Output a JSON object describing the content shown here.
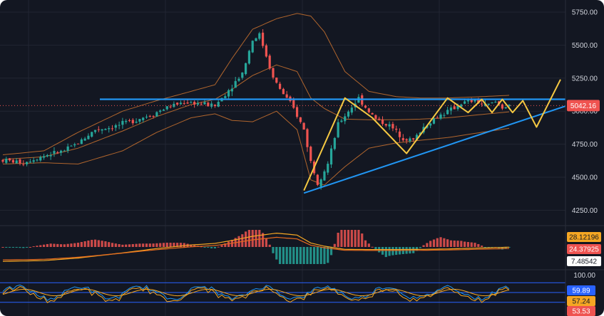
{
  "theme": {
    "background": "#131722",
    "frame": "#ffffff",
    "grid": "#222633",
    "up_color": "#26a69a",
    "down_color": "#ef5350",
    "bollinger_color": "#b0652d",
    "trendline_color": "#2196f3",
    "projection_color": "#f5c842",
    "macd_line_color": "#f5a623",
    "signal_line_color": "#e56b1f",
    "rsi_line_color": "#f5a623",
    "stoch_k_color": "#2196f3",
    "stoch_d_color": "#f5a623",
    "band_line_color": "#2962ff"
  },
  "price_axis": {
    "labels": [
      "5750.00",
      "5500.00",
      "5250.00",
      "5000.00",
      "4750.00",
      "4500.00",
      "4250.00"
    ],
    "values": [
      5750,
      5500,
      5250,
      5000,
      4750,
      4500,
      4250
    ],
    "current_price": "5042.16",
    "current_price_value": 5042.16,
    "current_price_color": "#ef5350"
  },
  "macd_axis": {
    "tags": [
      {
        "label": "28.12196",
        "value": 28.12196,
        "bg": "#f5a623",
        "fg": "#131722"
      },
      {
        "label": "24.37925",
        "value": 24.37925,
        "bg": "#ef5350",
        "fg": "#ffffff"
      },
      {
        "label": "7.48542",
        "value": 7.48542,
        "bg": "#ffffff",
        "fg": "#131722"
      }
    ]
  },
  "oscillator_axis": {
    "level_label": "100.00",
    "level_value": 100,
    "tags": [
      {
        "label": "59.89",
        "value": 59.89,
        "bg": "#2962ff",
        "fg": "#ffffff"
      },
      {
        "label": "57.24",
        "value": 57.24,
        "bg": "#f5a623",
        "fg": "#131722"
      },
      {
        "label": "53.53",
        "value": 53.53,
        "bg": "#ef5350",
        "fg": "#ffffff"
      }
    ],
    "bands": [
      80,
      50,
      20
    ]
  },
  "chart_data": {
    "type": "candlestick",
    "ylim": [
      4150,
      5820
    ],
    "resistance_level": 5090,
    "support_line": {
      "from": [
        88,
        4380
      ],
      "to": [
        160,
        5000
      ]
    },
    "projection_path": [
      [
        88,
        4400
      ],
      [
        100,
        5100
      ],
      [
        108,
        4950
      ],
      [
        118,
        4680
      ],
      [
        130,
        5100
      ],
      [
        136,
        4990
      ],
      [
        140,
        5090
      ],
      [
        143,
        4990
      ],
      [
        146,
        5090
      ],
      [
        149,
        4990
      ],
      [
        152,
        5080
      ],
      [
        156,
        4880
      ],
      [
        163,
        5240
      ]
    ],
    "price_waypoints": [
      [
        0,
        4630
      ],
      [
        6,
        4610
      ],
      [
        9,
        4640
      ],
      [
        13,
        4670
      ],
      [
        18,
        4700
      ],
      [
        22,
        4760
      ],
      [
        27,
        4860
      ],
      [
        32,
        4880
      ],
      [
        37,
        4920
      ],
      [
        44,
        4980
      ],
      [
        48,
        5030
      ],
      [
        53,
        5070
      ],
      [
        57,
        5060
      ],
      [
        62,
        5040
      ],
      [
        66,
        5160
      ],
      [
        70,
        5290
      ],
      [
        73,
        5540
      ],
      [
        75,
        5580
      ],
      [
        77,
        5420
      ],
      [
        79,
        5250
      ],
      [
        82,
        5130
      ],
      [
        85,
        5020
      ],
      [
        88,
        4860
      ],
      [
        90,
        4620
      ],
      [
        92,
        4460
      ],
      [
        95,
        4600
      ],
      [
        98,
        4900
      ],
      [
        101,
        5000
      ],
      [
        104,
        5100
      ],
      [
        106,
        5030
      ],
      [
        109,
        4940
      ],
      [
        113,
        4890
      ],
      [
        117,
        4800
      ],
      [
        120,
        4780
      ],
      [
        123,
        4880
      ],
      [
        127,
        4960
      ],
      [
        131,
        5010
      ],
      [
        134,
        5060
      ],
      [
        138,
        5080
      ],
      [
        141,
        5040
      ],
      [
        144,
        5070
      ],
      [
        146,
        5030
      ],
      [
        148,
        5050
      ]
    ],
    "bollinger_waypoints": [
      [
        0,
        4670,
        4600
      ],
      [
        12,
        4700,
        4610
      ],
      [
        22,
        4840,
        4600
      ],
      [
        35,
        5000,
        4700
      ],
      [
        45,
        5080,
        4840
      ],
      [
        55,
        5150,
        4950
      ],
      [
        62,
        5200,
        4980
      ],
      [
        67,
        5400,
        4930
      ],
      [
        73,
        5620,
        4920
      ],
      [
        80,
        5700,
        5000
      ],
      [
        86,
        5740,
        4860
      ],
      [
        90,
        5720,
        4480
      ],
      [
        94,
        5600,
        4440
      ],
      [
        100,
        5300,
        4580
      ],
      [
        107,
        5150,
        4720
      ],
      [
        115,
        5110,
        4760
      ],
      [
        122,
        5100,
        4780
      ],
      [
        130,
        5100,
        4800
      ],
      [
        140,
        5110,
        4840
      ],
      [
        148,
        5120,
        4870
      ]
    ],
    "candle_count": 149
  }
}
